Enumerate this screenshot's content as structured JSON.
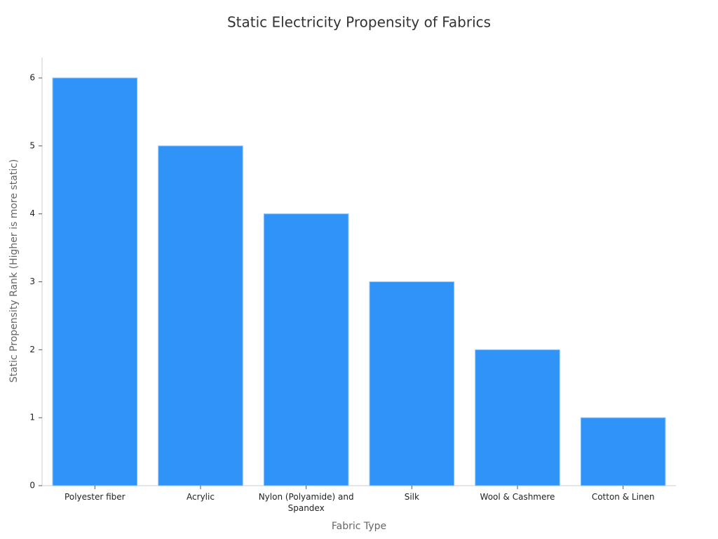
{
  "chart_data": {
    "type": "bar",
    "title": "Static Electricity Propensity of Fabrics",
    "x_label": "Fabric Type",
    "y_label": "Static Propensity Rank (Higher is more static)",
    "categories": [
      "Polyester fiber",
      "Acrylic",
      "Nylon (Polyamide) and Spandex",
      "Silk",
      "Wool & Cashmere",
      "Cotton & Linen"
    ],
    "values": [
      6,
      5,
      4,
      3,
      2,
      1
    ],
    "color": "#2f93f7",
    "ylim": [
      0,
      6.3
    ],
    "yticks": [
      0,
      1,
      2,
      3,
      4,
      5,
      6
    ],
    "grid": false
  }
}
